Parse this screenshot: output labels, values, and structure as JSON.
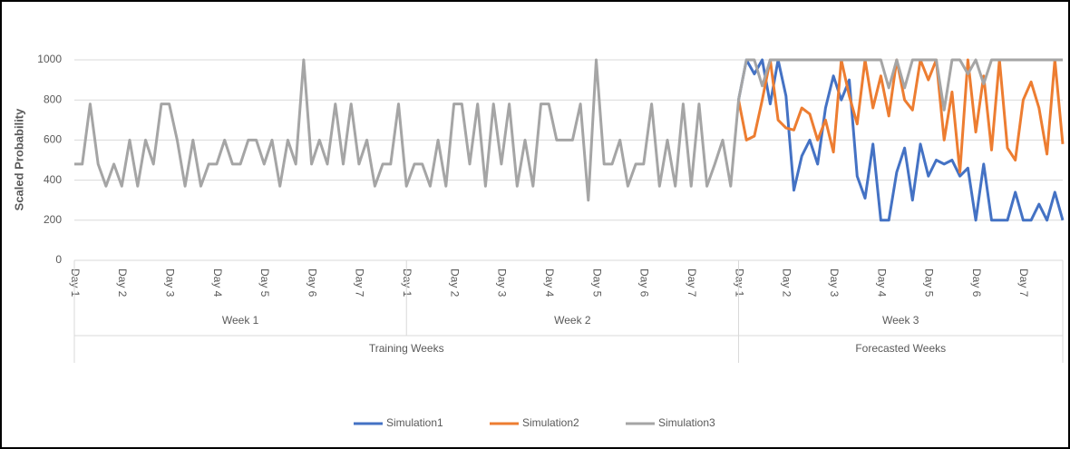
{
  "chart_data": {
    "type": "line",
    "y_label": "Scaled Probability",
    "categories": [
      "Day 1",
      null,
      null,
      null,
      null,
      null,
      "Day 2",
      null,
      null,
      null,
      null,
      null,
      "Day 3",
      null,
      null,
      null,
      null,
      null,
      "Day 4",
      null,
      null,
      null,
      null,
      null,
      "Day 5",
      null,
      null,
      null,
      null,
      null,
      "Day 6",
      null,
      null,
      null,
      null,
      null,
      "Day 7",
      null,
      null,
      null,
      null,
      null,
      "Day 1",
      null,
      null,
      null,
      null,
      null,
      "Day 2",
      null,
      null,
      null,
      null,
      null,
      "Day 3",
      null,
      null,
      null,
      null,
      null,
      "Day 4",
      null,
      null,
      null,
      null,
      null,
      "Day 5",
      null,
      null,
      null,
      null,
      null,
      "Day 6",
      null,
      null,
      null,
      null,
      null,
      "Day 7",
      null,
      null,
      null,
      null,
      null,
      "Day 1",
      null,
      null,
      null,
      null,
      null,
      "Day 2",
      null,
      null,
      null,
      null,
      null,
      "Day 3",
      null,
      null,
      null,
      null,
      null,
      "Day 4",
      null,
      null,
      null,
      null,
      null,
      "Day 5",
      null,
      null,
      null,
      null,
      null,
      "Day 6",
      null,
      null,
      null,
      null,
      null,
      "Day 7",
      null,
      null,
      null,
      null,
      null
    ],
    "week_categories": [
      "Week 1",
      "Week 2",
      "Week 3"
    ],
    "group_categories": [
      "Training Weeks",
      null,
      "Forecasted Weeks"
    ],
    "series": [
      {
        "name": "Simulation1",
        "color": "#4472c4",
        "values": [
          null,
          null,
          null,
          null,
          null,
          null,
          null,
          null,
          null,
          null,
          null,
          null,
          null,
          null,
          null,
          null,
          null,
          null,
          null,
          null,
          null,
          null,
          null,
          null,
          null,
          null,
          null,
          null,
          null,
          null,
          null,
          null,
          null,
          null,
          null,
          null,
          null,
          null,
          null,
          null,
          null,
          null,
          null,
          null,
          null,
          null,
          null,
          null,
          null,
          null,
          null,
          null,
          null,
          null,
          null,
          null,
          null,
          null,
          null,
          null,
          null,
          null,
          null,
          null,
          null,
          null,
          null,
          null,
          null,
          null,
          null,
          null,
          null,
          null,
          null,
          null,
          null,
          null,
          null,
          null,
          null,
          null,
          null,
          null,
          800,
          1000,
          930,
          1000,
          780,
          1000,
          820,
          350,
          520,
          600,
          480,
          760,
          920,
          800,
          900,
          420,
          310,
          580,
          200,
          200,
          440,
          560,
          300,
          580,
          420,
          500,
          480,
          500,
          420,
          460,
          200,
          480,
          200,
          200,
          200,
          340,
          200,
          200,
          280,
          200,
          340,
          200
        ]
      },
      {
        "name": "Simulation2",
        "color": "#ed7d31",
        "values": [
          null,
          null,
          null,
          null,
          null,
          null,
          null,
          null,
          null,
          null,
          null,
          null,
          null,
          null,
          null,
          null,
          null,
          null,
          null,
          null,
          null,
          null,
          null,
          null,
          null,
          null,
          null,
          null,
          null,
          null,
          null,
          null,
          null,
          null,
          null,
          null,
          null,
          null,
          null,
          null,
          null,
          null,
          null,
          null,
          null,
          null,
          null,
          null,
          null,
          null,
          null,
          null,
          null,
          null,
          null,
          null,
          null,
          null,
          null,
          null,
          null,
          null,
          null,
          null,
          null,
          null,
          null,
          null,
          null,
          null,
          null,
          null,
          null,
          null,
          null,
          null,
          null,
          null,
          null,
          null,
          null,
          null,
          null,
          null,
          800,
          600,
          620,
          800,
          1000,
          700,
          660,
          650,
          760,
          730,
          600,
          700,
          540,
          1000,
          820,
          680,
          1000,
          760,
          920,
          720,
          1000,
          800,
          750,
          1000,
          900,
          1000,
          600,
          840,
          440,
          1000,
          640,
          920,
          550,
          1000,
          560,
          500,
          800,
          890,
          760,
          530,
          1000,
          580
        ]
      },
      {
        "name": "Simulation3",
        "color": "#a5a5a5",
        "values": [
          480,
          480,
          780,
          480,
          370,
          480,
          370,
          600,
          370,
          600,
          480,
          780,
          780,
          600,
          370,
          600,
          370,
          480,
          480,
          600,
          480,
          480,
          600,
          600,
          480,
          600,
          370,
          600,
          480,
          1000,
          480,
          600,
          480,
          780,
          480,
          780,
          480,
          600,
          370,
          480,
          480,
          780,
          370,
          480,
          480,
          370,
          600,
          370,
          780,
          780,
          480,
          780,
          370,
          780,
          480,
          780,
          370,
          600,
          370,
          780,
          780,
          600,
          600,
          600,
          780,
          300,
          1000,
          480,
          480,
          600,
          370,
          480,
          480,
          780,
          370,
          600,
          370,
          780,
          370,
          780,
          370,
          480,
          600,
          370,
          800,
          1000,
          1000,
          870,
          1000,
          1000,
          1000,
          1000,
          1000,
          1000,
          1000,
          1000,
          1000,
          1000,
          1000,
          1000,
          1000,
          1000,
          1000,
          860,
          1000,
          860,
          1000,
          1000,
          1000,
          1000,
          750,
          1000,
          1000,
          930,
          1000,
          880,
          1000,
          1000,
          1000,
          1000,
          1000,
          1000,
          1000,
          1000,
          1000,
          1000
        ]
      }
    ],
    "ylim": [
      0,
      1000
    ],
    "yticks": [
      0,
      200,
      400,
      600,
      800,
      1000
    ],
    "grid": true,
    "legend": "bottom"
  }
}
